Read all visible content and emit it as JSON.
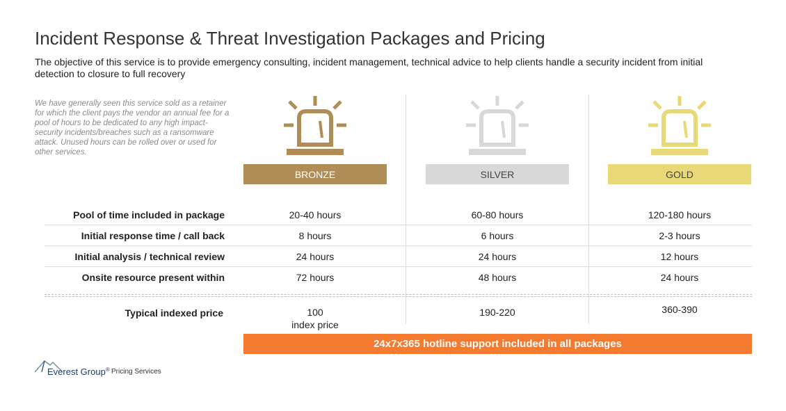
{
  "title": "Incident Response & Threat Investigation Packages and Pricing",
  "subtitle": "The objective of this service is to provide emergency consulting, incident management, technical advice to help clients handle a security incident from initial detection to closure to full recovery",
  "note": "We have generally seen this service sold as a retainer for which the client pays the vendor an annual fee for a pool of hours to be dedicated to any high impact-security incidents/breaches such as a ransomware attack. Unused hours can be rolled over or used for other services.",
  "tiers": [
    {
      "name": "BRONZE",
      "color": "#b08d57",
      "icon": "alarm-light-icon"
    },
    {
      "name": "SILVER",
      "color": "#d8d8d8",
      "icon": "alarm-light-icon"
    },
    {
      "name": "GOLD",
      "color": "#e9d877",
      "icon": "alarm-light-icon"
    }
  ],
  "rows": [
    {
      "label": "Pool of time included in package",
      "values": [
        "20-40 hours",
        "60-80 hours",
        "120-180 hours"
      ]
    },
    {
      "label": "Initial response time / call back",
      "values": [
        "8 hours",
        "6 hours",
        "2-3 hours"
      ]
    },
    {
      "label": "Initial analysis / technical review",
      "values": [
        "24 hours",
        "24 hours",
        "12 hours"
      ]
    },
    {
      "label": "Onsite resource present within",
      "values": [
        "72 hours",
        "48 hours",
        "24 hours"
      ]
    }
  ],
  "price": {
    "label": "Typical indexed price",
    "values": [
      "100",
      "190-220",
      "360-390"
    ],
    "bronze_sub": "index price"
  },
  "hotline": "24x7x365 hotline support included in all packages",
  "footer": {
    "brand": "Everest Group",
    "registered": "®",
    "service": "Pricing Services"
  },
  "colors": {
    "accent_orange": "#f47a30",
    "brand_blue": "#1f3d6b"
  }
}
